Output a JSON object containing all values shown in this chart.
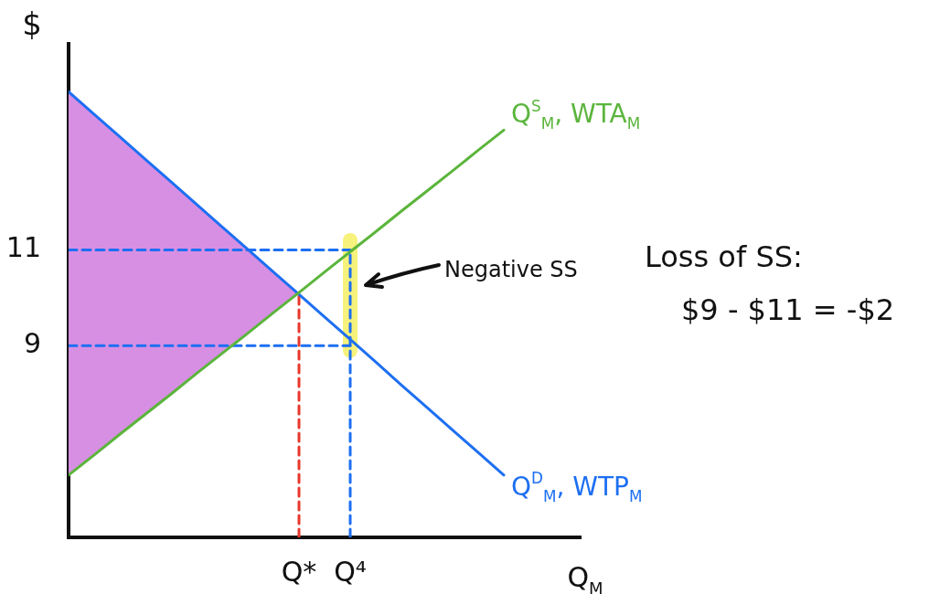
{
  "chart_data": {
    "type": "line",
    "ylabel": "$",
    "xlabel": "Q$_{M}$",
    "categories": [
      null,
      null,
      null,
      null,
      null,
      null,
      null,
      null,
      null,
      "Q*",
      null,
      "Q⁴",
      null,
      null,
      null,
      null,
      null,
      null,
      null,
      null,
      null
    ],
    "ylim": [
      5,
      15.3
    ],
    "yticks": [
      9,
      11
    ],
    "grid": false,
    "legend": false,
    "marker": "none",
    "series": [
      {
        "color": "#f7f27c",
        "x": [
          "Q⁴",
          "Q⁴"
        ],
        "values": [
          8.9,
          11.2
        ]
      },
      {
        "color": "#1d6ff2",
        "line_style": "dashed",
        "values": [
          11,
          11,
          11,
          11,
          11,
          11,
          11,
          11,
          11,
          11,
          11,
          11,
          null,
          null,
          null,
          null,
          null,
          null,
          null,
          null,
          null
        ]
      },
      {
        "color": "#1d6ff2",
        "line_style": "dashed",
        "values": [
          9,
          9,
          9,
          9,
          9,
          9,
          9,
          9,
          9,
          9,
          9,
          9,
          null,
          null,
          null,
          null,
          null,
          null,
          null,
          null,
          null
        ]
      },
      {
        "color": "#1d6ff2",
        "line_style": "dashed",
        "x": [
          "Q⁴",
          "Q⁴"
        ],
        "values": [
          5,
          11
        ]
      },
      {
        "color": "#e8372b",
        "line_style": "dashed",
        "x": [
          "Q*",
          "Q*"
        ],
        "values": [
          5,
          10.1
        ]
      },
      {
        "name": "Q$^{D}$$_{M}$, WTP$_{M}$",
        "color": "#1d6ff2",
        "line_style": "solid",
        "values": [
          14.3,
          13.83,
          13.36,
          12.89,
          12.42,
          11.95,
          11.48,
          11.01,
          10.54,
          10.07,
          9.6,
          9.13,
          8.66,
          8.18,
          7.71,
          7.24,
          6.77,
          6.3,
          null,
          null,
          null
        ]
      },
      {
        "type": "area",
        "color": "#d78fe3",
        "values": [
          14.3,
          13.83,
          13.36,
          12.89,
          12.42,
          11.95,
          11.48,
          11.01,
          10.54,
          10.07,
          null,
          null,
          null,
          null,
          null,
          null,
          null,
          null,
          null,
          null,
          null
        ]
      },
      {
        "name": "Q$^{S}$$_{M}$, WTA$_{M}$",
        "color": "#5bb53c",
        "line_style": "solid",
        "values": [
          6.3,
          6.72,
          7.15,
          7.57,
          7.99,
          8.42,
          8.84,
          9.26,
          9.69,
          10.11,
          10.54,
          10.96,
          11.38,
          11.81,
          12.23,
          12.65,
          13.08,
          13.5,
          null,
          null,
          null
        ]
      }
    ],
    "annotations": [
      "Negative SS",
      "Loss of SS:",
      "$9 - $11 = -$2"
    ]
  }
}
